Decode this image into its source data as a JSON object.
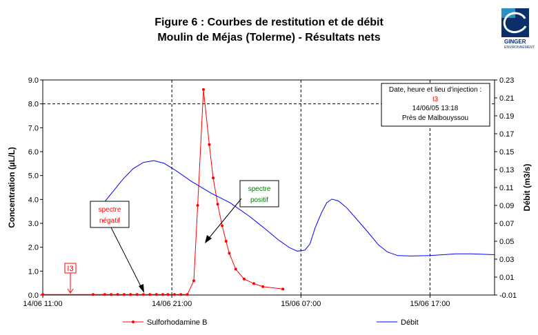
{
  "header": {
    "title_line1": "Figure 6 : Courbes de restitution et de débit",
    "title_line2": "Moulin de Méjas (Tolerme) - Résultats nets",
    "logo_text_1": "GINGER",
    "logo_text_2": "ENVIRONNEMENT"
  },
  "chart_data": {
    "type": "line",
    "ylabel_left": "Concentration (µL/L)",
    "ylabel_right": "Débit (m3/s)",
    "xlabel": "",
    "x_tick_labels": [
      "14/06 11:00",
      "14/06 21:00",
      "15/06 07:00",
      "15/06 17:00"
    ],
    "x_ticks_hours": [
      11,
      21,
      31,
      41
    ],
    "xlim_hours": [
      11,
      46
    ],
    "y_left_lim": [
      0,
      9
    ],
    "y_left_ticks": [
      "0.0",
      "1.0",
      "2.0",
      "3.0",
      "4.0",
      "5.0",
      "6.0",
      "7.0",
      "8.0",
      "9.0"
    ],
    "y_right_lim": [
      -0.01,
      0.23
    ],
    "y_right_ticks": [
      "-0.01",
      "0.01",
      "0.03",
      "0.05",
      "0.07",
      "0.09",
      "0.11",
      "0.13",
      "0.15",
      "0.17",
      "0.19",
      "0.21",
      "0.23"
    ],
    "dashed_vertical_at_hours": [
      11,
      21,
      31,
      41
    ],
    "dashed_horizontal_left_values": [
      8
    ],
    "series": [
      {
        "name": "Sulforhodamine B",
        "axis": "left",
        "color": "#ff0000",
        "points": [
          [
            11.0,
            0.02
          ],
          [
            14.9,
            0.02
          ],
          [
            15.8,
            0.02
          ],
          [
            16.3,
            0.02
          ],
          [
            16.8,
            0.02
          ],
          [
            17.3,
            0.02
          ],
          [
            17.8,
            0.02
          ],
          [
            18.3,
            0.02
          ],
          [
            18.8,
            0.02
          ],
          [
            19.3,
            0.02
          ],
          [
            19.8,
            0.02
          ],
          [
            20.3,
            0.02
          ],
          [
            20.7,
            0.02
          ],
          [
            21.2,
            0.02
          ],
          [
            21.7,
            0.02
          ],
          [
            22.2,
            0.02
          ],
          [
            22.7,
            0.6
          ],
          [
            23.0,
            3.75
          ],
          [
            23.45,
            8.6
          ],
          [
            23.9,
            6.3
          ],
          [
            24.2,
            4.9
          ],
          [
            24.55,
            3.8
          ],
          [
            24.9,
            2.9
          ],
          [
            25.2,
            2.25
          ],
          [
            25.45,
            1.75
          ],
          [
            25.95,
            1.08
          ],
          [
            26.6,
            0.67
          ],
          [
            27.35,
            0.48
          ],
          [
            28.05,
            0.35
          ],
          [
            29.6,
            0.25
          ]
        ]
      },
      {
        "name": "Débit",
        "axis": "right",
        "color": "#0000ff",
        "points": [
          [
            15.4,
            0.087
          ],
          [
            16.3,
            0.103
          ],
          [
            17.2,
            0.119
          ],
          [
            18.0,
            0.131
          ],
          [
            18.8,
            0.138
          ],
          [
            19.6,
            0.14
          ],
          [
            20.4,
            0.137
          ],
          [
            21.3,
            0.129
          ],
          [
            22.5,
            0.117
          ],
          [
            24.0,
            0.104
          ],
          [
            25.5,
            0.093
          ],
          [
            27.0,
            0.078
          ],
          [
            28.3,
            0.063
          ],
          [
            29.3,
            0.051
          ],
          [
            30.1,
            0.043
          ],
          [
            30.7,
            0.039
          ],
          [
            31.3,
            0.04
          ],
          [
            31.7,
            0.047
          ],
          [
            32.1,
            0.065
          ],
          [
            32.6,
            0.082
          ],
          [
            33.0,
            0.093
          ],
          [
            33.4,
            0.097
          ],
          [
            33.9,
            0.095
          ],
          [
            34.5,
            0.088
          ],
          [
            35.3,
            0.075
          ],
          [
            36.2,
            0.06
          ],
          [
            37.0,
            0.046
          ],
          [
            37.7,
            0.038
          ],
          [
            38.5,
            0.034
          ],
          [
            39.5,
            0.0335
          ],
          [
            41.0,
            0.034
          ],
          [
            43.0,
            0.036
          ],
          [
            44.2,
            0.036
          ],
          [
            46.0,
            0.035
          ]
        ]
      }
    ],
    "annotations": [
      {
        "text": "I3",
        "color": "#ff0000",
        "x_hours": 12.1,
        "y_left": 0.02,
        "boxed": true
      },
      {
        "text": "spectre\nnégatif",
        "color": "#ff0000",
        "arrow_to_hours": 20.6,
        "arrow_to_left": 0.0
      },
      {
        "text": "spectre\npositif",
        "color": "#008000",
        "arrow_to_hours": 25.1,
        "arrow_to_left": 2.2
      }
    ],
    "info_box": {
      "line1": "Date, heure et lieu d'injection :",
      "line2": "I3",
      "line3": "14/06/05 13:18",
      "line4": "Près de Malbouyssou"
    },
    "legend": {
      "placement": "bottom",
      "items": [
        "Sulforhodamine B",
        "Débit"
      ]
    }
  }
}
